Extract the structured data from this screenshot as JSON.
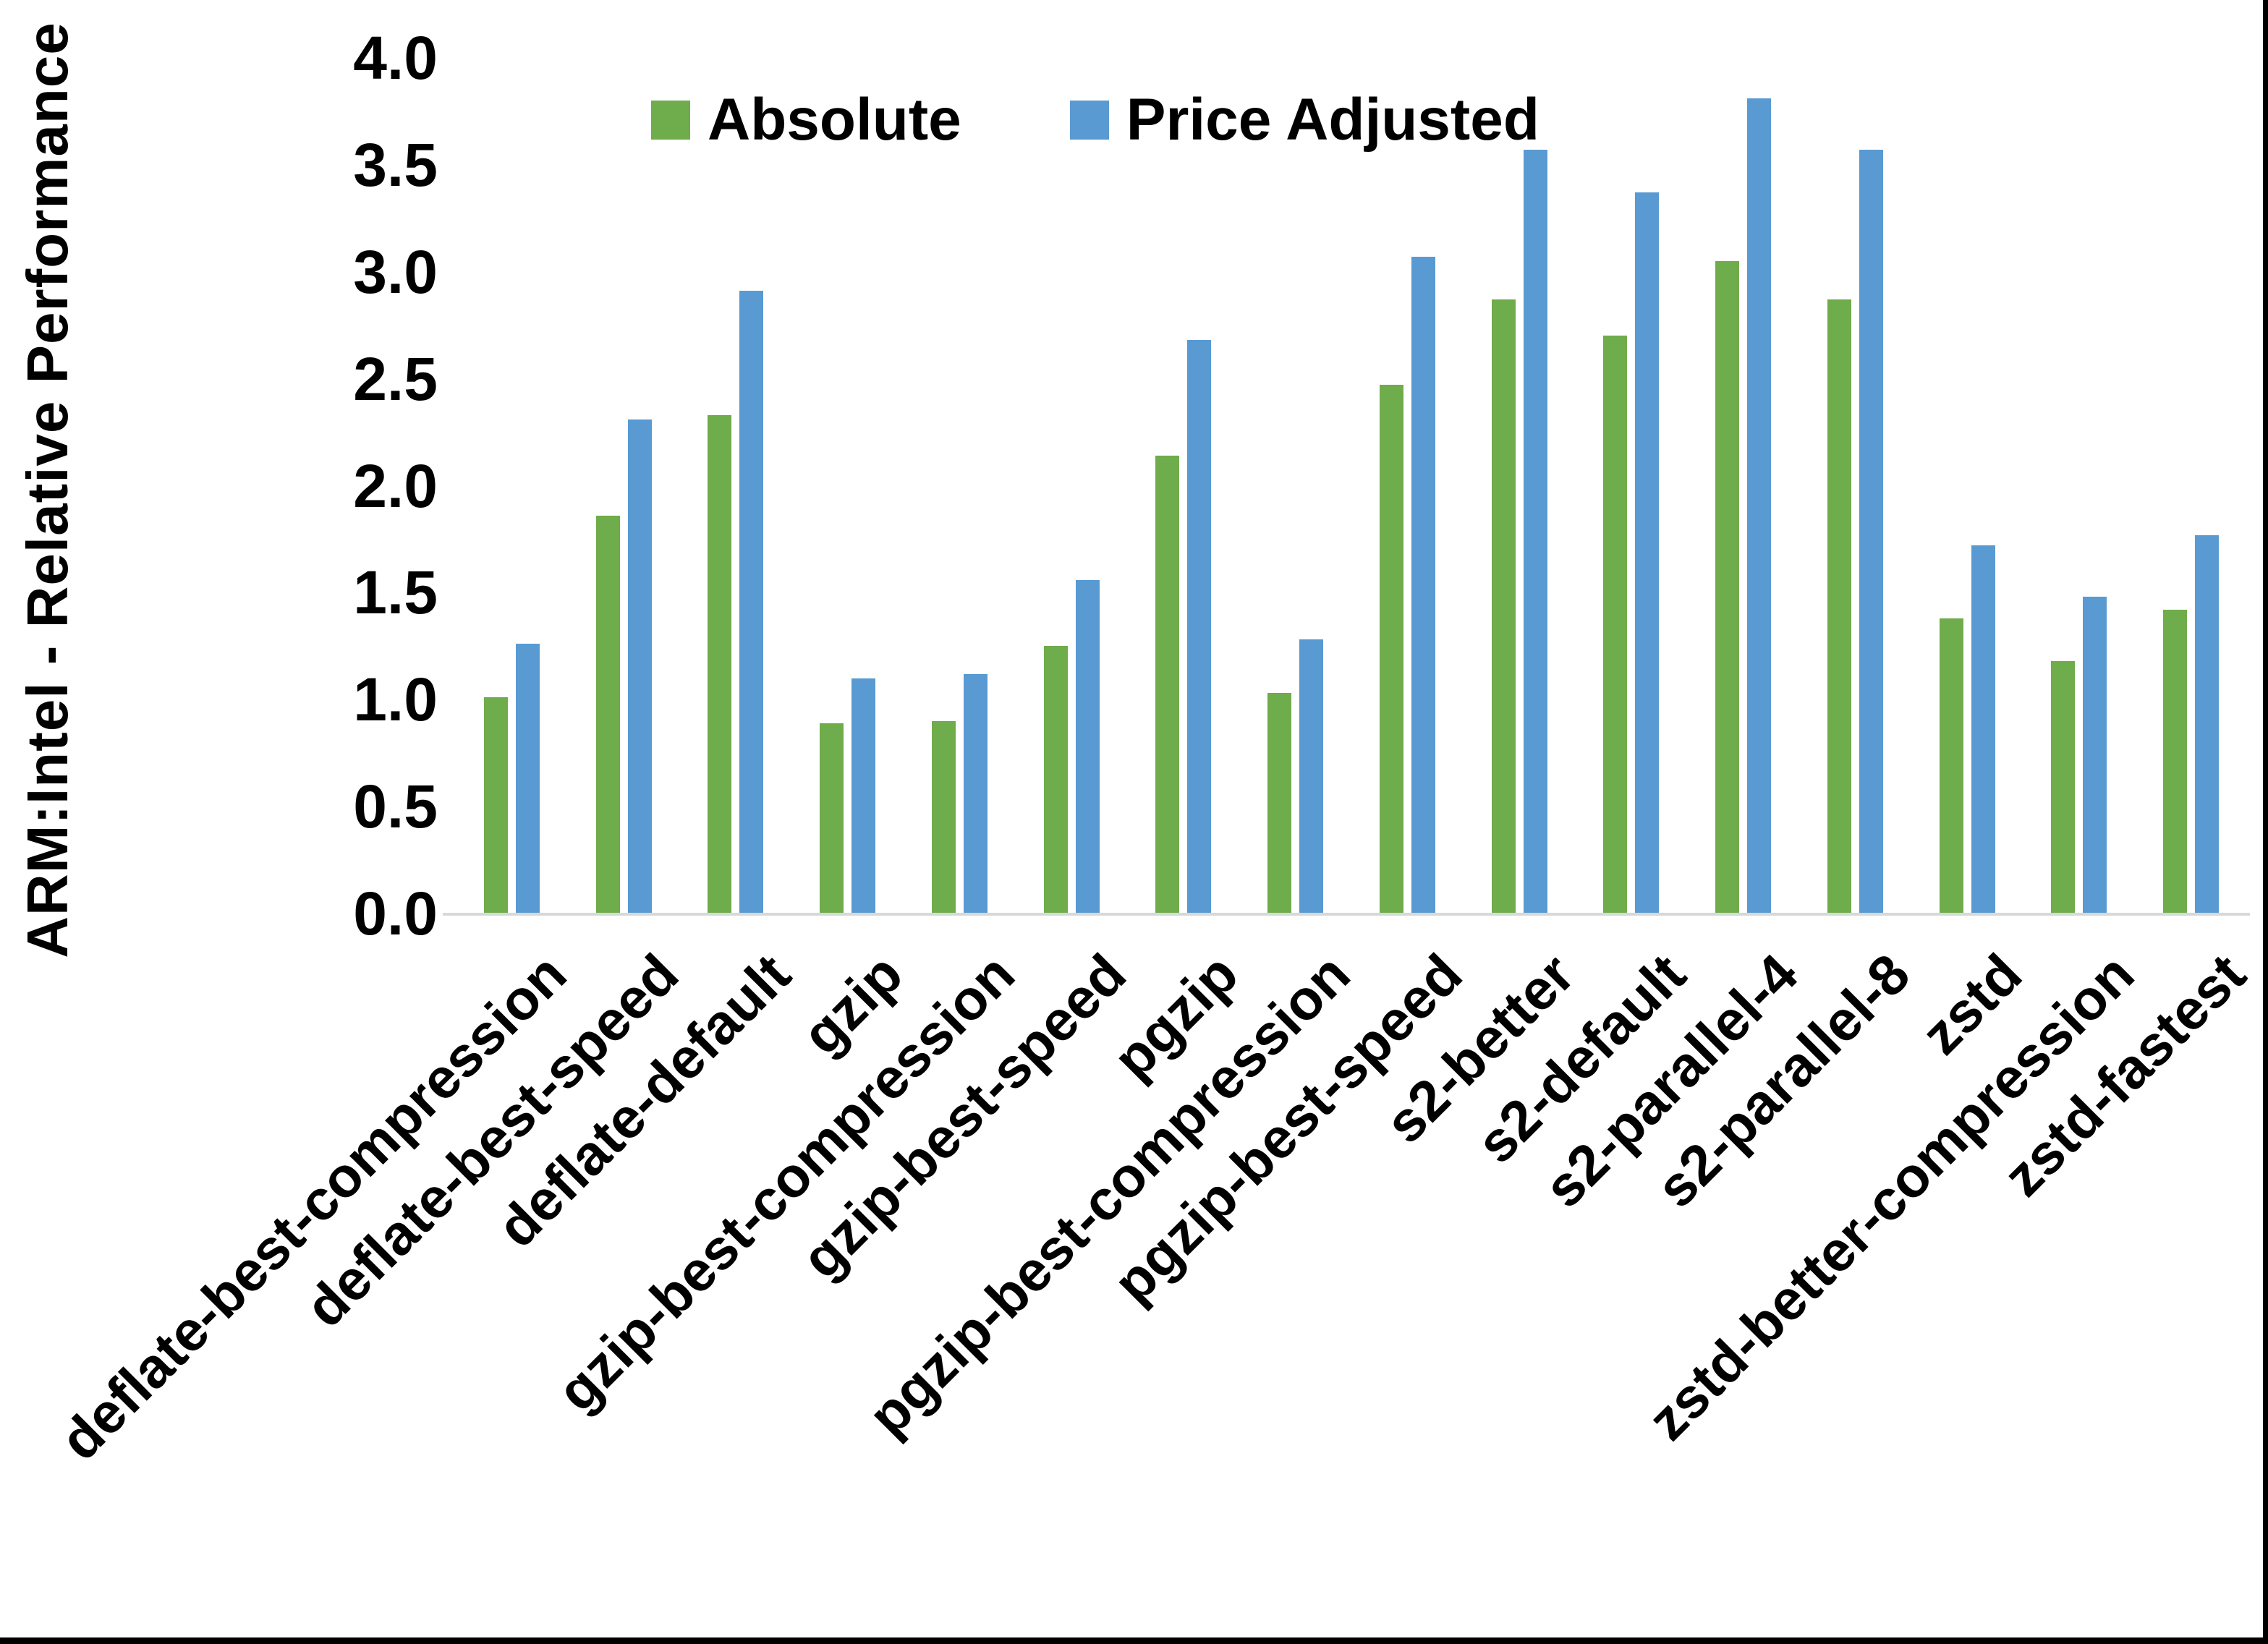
{
  "chart_data": {
    "type": "bar",
    "title": "",
    "xlabel": "",
    "ylabel": "ARM:Intel - Relative Performance",
    "ylim": [
      0.0,
      4.0
    ],
    "ytick_step": 0.5,
    "yticks": [
      {
        "label": "4.0",
        "value": 4.0
      },
      {
        "label": "3.5",
        "value": 3.5
      },
      {
        "label": "3.0",
        "value": 3.0
      },
      {
        "label": "2.5",
        "value": 2.5
      },
      {
        "label": "2.0",
        "value": 2.0
      },
      {
        "label": "1.5",
        "value": 1.5
      },
      {
        "label": "1.0",
        "value": 1.0
      },
      {
        "label": "0.5",
        "value": 0.5
      },
      {
        "label": "0.0",
        "value": 0.0
      }
    ],
    "grid": false,
    "legend_position": "top",
    "categories": [
      "deflate-best-compression",
      "deflate-best-speed",
      "deflate-default",
      "gzip",
      "gzip-best-compression",
      "gzip-best-speed",
      "pgzip",
      "pgzip-best-compression",
      "pgzip-best-speed",
      "s2-better",
      "s2-default",
      "s2-parallel-4",
      "s2-parallel-8",
      "zstd",
      "zstd-better-compression",
      "zstd-fastest"
    ],
    "series": [
      {
        "name": "Absolute",
        "color": "#6FAC4B",
        "values": [
          1.01,
          1.86,
          2.33,
          0.89,
          0.9,
          1.25,
          2.14,
          1.03,
          2.47,
          2.87,
          2.7,
          3.05,
          2.87,
          1.38,
          1.18,
          1.42
        ]
      },
      {
        "name": "Price Adjusted",
        "color": "#599AD3",
        "values": [
          1.26,
          2.31,
          2.91,
          1.1,
          1.12,
          1.56,
          2.68,
          1.28,
          3.07,
          3.57,
          3.37,
          3.81,
          3.57,
          1.72,
          1.48,
          1.77
        ]
      }
    ]
  },
  "colors": {
    "axis_line": "#D8D8D8",
    "text": "#000000",
    "background": "#ffffff",
    "frame_edge": "#000000"
  }
}
